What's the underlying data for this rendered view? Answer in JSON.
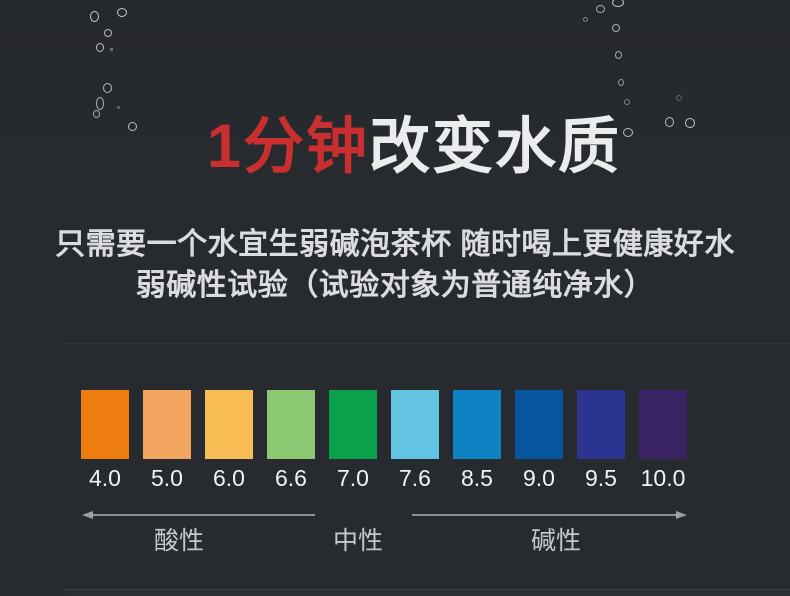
{
  "header": {
    "title_highlight": "1分钟",
    "title_rest": "改变水质",
    "subtitle_line1": "只需要一个水宜生弱碱泡茶杯 随时喝上更健康好水",
    "subtitle_line2": "弱碱性试验（试验对象为普通纯净水）"
  },
  "colors": {
    "background": "#272a2f",
    "bg-top": "#25282c",
    "title-accent": "#c92f2f",
    "title-main": "#eaecee",
    "subtitle": "#dadce0",
    "value-text": "#f2f3f5",
    "zone-text": "#c6c9cc",
    "arrow": "#b2b5b8"
  },
  "ph_scale": {
    "items": [
      {
        "value": "4.0",
        "color": "#ee7d10"
      },
      {
        "value": "5.0",
        "color": "#f2a55e"
      },
      {
        "value": "6.0",
        "color": "#f8bd55"
      },
      {
        "value": "6.6",
        "color": "#8dc973"
      },
      {
        "value": "7.0",
        "color": "#09a14a"
      },
      {
        "value": "7.6",
        "color": "#62c3e3"
      },
      {
        "value": "8.5",
        "color": "#0f82c4"
      },
      {
        "value": "9.0",
        "color": "#07569f"
      },
      {
        "value": "9.5",
        "color": "#2a3491"
      },
      {
        "value": "10.0",
        "color": "#3a2363"
      }
    ],
    "zones": [
      {
        "label": "酸性",
        "arrow": "left"
      },
      {
        "label": "中性",
        "arrow": "none"
      },
      {
        "label": "碱性",
        "arrow": "right"
      }
    ]
  },
  "decor": {
    "bubbles": "bubble-icon"
  }
}
